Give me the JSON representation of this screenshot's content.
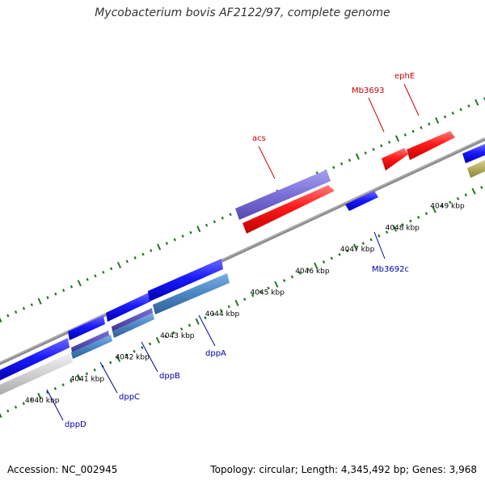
{
  "title": "Mycobacterium bovis AF2122/97, complete genome",
  "footer": {
    "accession": "Accession: NC_002945",
    "summary": "Topology: circular; Length: 4,345,492 bp; Genes: 3,968"
  },
  "colors": {
    "backbone": "#8c8c8c",
    "tick": "#1f7a1f",
    "forward_gene": "#ff1a1a",
    "reverse_gene": "#1a1aff",
    "forward_label": "#cc0000",
    "reverse_label": "#0000aa"
  },
  "kbp_ticks": [
    {
      "label": "4040 kbp",
      "kbp": 4040
    },
    {
      "label": "4041 kbp",
      "kbp": 4041
    },
    {
      "label": "4042 kbp",
      "kbp": 4042
    },
    {
      "label": "4043 kbp",
      "kbp": 4043
    },
    {
      "label": "4044 kbp",
      "kbp": 4044
    },
    {
      "label": "4045 kbp",
      "kbp": 4045
    },
    {
      "label": "4046 kbp",
      "kbp": 4046
    },
    {
      "label": "4047 kbp",
      "kbp": 4047
    },
    {
      "label": "4048 kbp",
      "kbp": 4048
    },
    {
      "label": "4049 kbp",
      "kbp": 4049
    }
  ],
  "gene_labels": [
    {
      "text": "dppD",
      "strand": "reverse"
    },
    {
      "text": "dppC",
      "strand": "reverse"
    },
    {
      "text": "dppB",
      "strand": "reverse"
    },
    {
      "text": "dppA",
      "strand": "reverse"
    },
    {
      "text": "Mb3692c",
      "strand": "reverse"
    },
    {
      "text": "acs",
      "strand": "forward"
    },
    {
      "text": "Mb3693",
      "strand": "forward"
    },
    {
      "text": "ephE",
      "strand": "forward"
    }
  ]
}
